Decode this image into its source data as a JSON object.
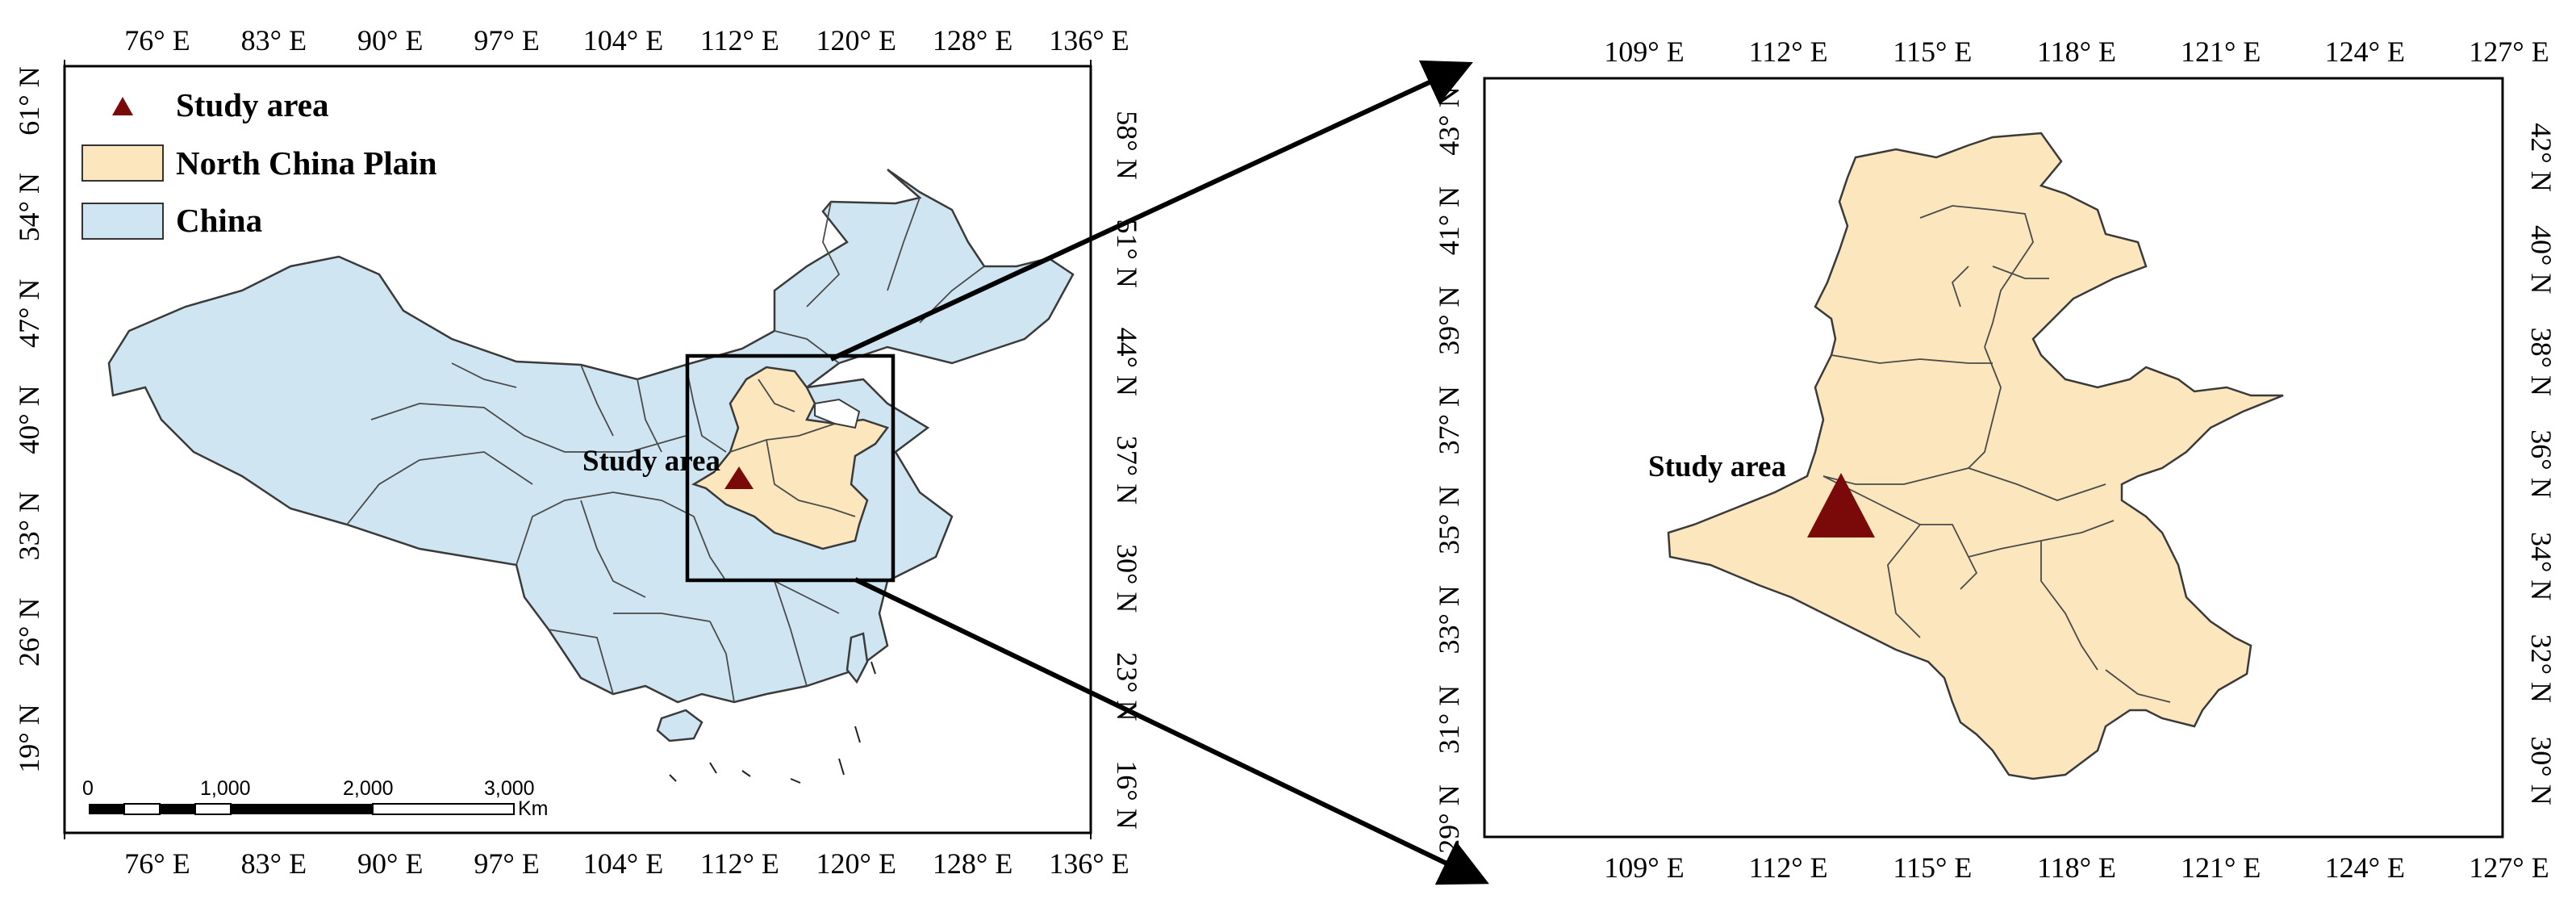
{
  "left_map": {
    "top_ticks": [
      "76° E",
      "83° E",
      "90° E",
      "97° E",
      "104° E",
      "112° E",
      "120° E",
      "128° E",
      "136° E"
    ],
    "bottom_ticks": [
      "76° E",
      "83° E",
      "90° E",
      "97° E",
      "104° E",
      "112° E",
      "120° E",
      "128° E",
      "136° E"
    ],
    "left_ticks": [
      "61° N",
      "54° N",
      "47° N",
      "40° N",
      "33° N",
      "26° N",
      "19° N"
    ],
    "right_ticks": [
      "58° N",
      "51° N",
      "44° N",
      "37° N",
      "30° N",
      "23° N",
      "16° N"
    ],
    "legend": {
      "study_area": "Study area",
      "north_china_plain": "North China Plain",
      "china": "China"
    },
    "study_label": "Study area",
    "scale_bar": {
      "labels": [
        "0",
        "1,000",
        "2,000",
        "3,000"
      ],
      "unit": "Km"
    }
  },
  "right_map": {
    "top_ticks": [
      "109° E",
      "112° E",
      "115° E",
      "118° E",
      "121° E",
      "124° E",
      "127° E"
    ],
    "bottom_ticks": [
      "109° E",
      "112° E",
      "115° E",
      "118° E",
      "121° E",
      "124° E",
      "127° E"
    ],
    "left_ticks": [
      "43° N",
      "41° N",
      "39° N",
      "37° N",
      "35° N",
      "33° N",
      "31° N",
      "29° N"
    ],
    "right_ticks": [
      "42° N",
      "40° N",
      "38° N",
      "36° N",
      "34° N",
      "32° N",
      "30° N"
    ],
    "study_label": "Study area"
  },
  "colors": {
    "china_fill": "#cfe6f2",
    "plain_fill": "#fbe6bd",
    "study_marker": "#7a0a0a",
    "outline": "#3a3a3a"
  }
}
